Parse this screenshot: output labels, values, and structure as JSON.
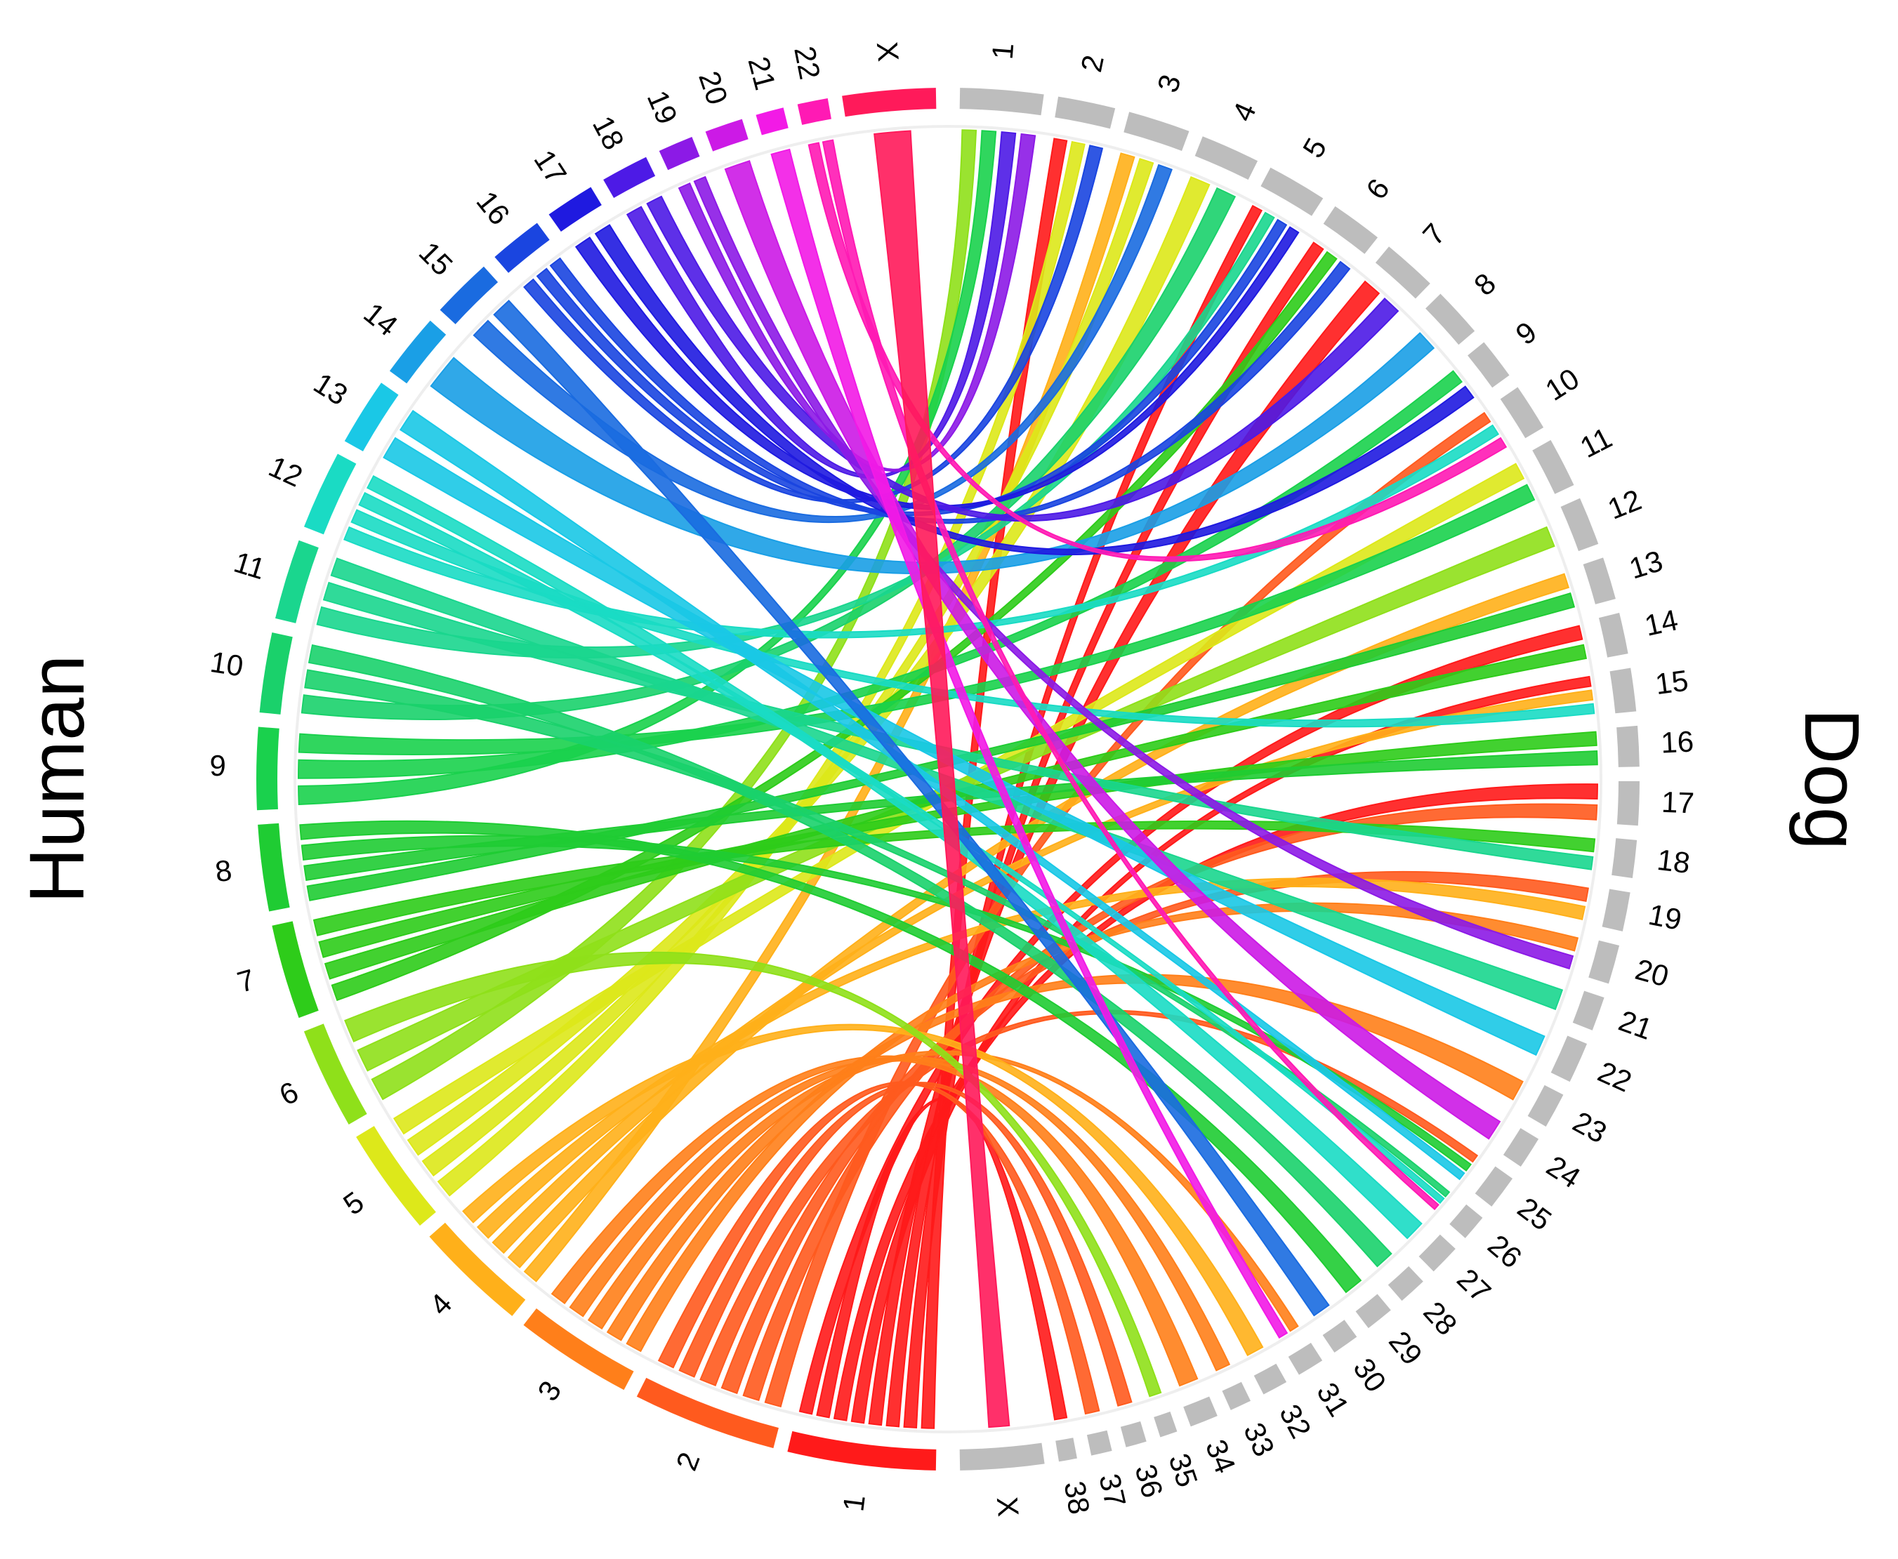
{
  "chart_data": {
    "type": "chord",
    "groups": [
      {
        "name": "Human",
        "chromosomes": [
          "1",
          "2",
          "3",
          "4",
          "5",
          "6",
          "7",
          "8",
          "9",
          "10",
          "11",
          "12",
          "13",
          "14",
          "15",
          "16",
          "17",
          "18",
          "19",
          "20",
          "21",
          "22",
          "X"
        ],
        "lengths": [
          248,
          242,
          198,
          190,
          181,
          171,
          159,
          145,
          138,
          134,
          135,
          133,
          114,
          107,
          102,
          90,
          83,
          80,
          59,
          64,
          47,
          51,
          156
        ],
        "colors": [
          "#ff1a1a",
          "#ff5a1e",
          "#ff7f1a",
          "#ffb01a",
          "#dde81a",
          "#8fe01a",
          "#2ecc1a",
          "#1fcc33",
          "#1ad14d",
          "#1ad16b",
          "#1ad68e",
          "#1adbc4",
          "#1ac8e6",
          "#1a9fe6",
          "#1a6be0",
          "#1a45e0",
          "#1f1ae0",
          "#4d1ae6",
          "#8c1ae6",
          "#cc1ae6",
          "#f21ae6",
          "#ff1ab4",
          "#ff1a5a"
        ]
      },
      {
        "name": "Dog",
        "chromosomes": [
          "1",
          "2",
          "3",
          "4",
          "5",
          "6",
          "7",
          "8",
          "9",
          "10",
          "11",
          "12",
          "13",
          "14",
          "15",
          "16",
          "17",
          "18",
          "19",
          "20",
          "21",
          "22",
          "23",
          "24",
          "25",
          "26",
          "27",
          "28",
          "29",
          "30",
          "31",
          "32",
          "33",
          "34",
          "35",
          "36",
          "37",
          "38",
          "X"
        ],
        "lengths": [
          123,
          85,
          92,
          88,
          89,
          77,
          81,
          74,
          61,
          70,
          74,
          72,
          63,
          61,
          64,
          60,
          65,
          56,
          58,
          58,
          51,
          61,
          53,
          48,
          51,
          39,
          46,
          42,
          42,
          40,
          40,
          38,
          32,
          42,
          26,
          31,
          31,
          27,
          124
        ],
        "color": "#bdbdbd"
      }
    ],
    "links": [
      {
        "from": "1",
        "to": "2"
      },
      {
        "from": "1",
        "to": "5"
      },
      {
        "from": "1",
        "to": "6"
      },
      {
        "from": "1",
        "to": "7"
      },
      {
        "from": "1",
        "to": "15"
      },
      {
        "from": "1",
        "to": "17"
      },
      {
        "from": "1",
        "to": "38"
      },
      {
        "from": "1",
        "to": "14"
      },
      {
        "from": "2",
        "to": "10"
      },
      {
        "from": "2",
        "to": "17"
      },
      {
        "from": "2",
        "to": "19"
      },
      {
        "from": "2",
        "to": "25"
      },
      {
        "from": "2",
        "to": "36"
      },
      {
        "from": "2",
        "to": "37"
      },
      {
        "from": "3",
        "to": "20"
      },
      {
        "from": "3",
        "to": "23"
      },
      {
        "from": "3",
        "to": "31"
      },
      {
        "from": "3",
        "to": "33"
      },
      {
        "from": "3",
        "to": "34"
      },
      {
        "from": "4",
        "to": "3"
      },
      {
        "from": "4",
        "to": "13"
      },
      {
        "from": "4",
        "to": "15"
      },
      {
        "from": "4",
        "to": "19"
      },
      {
        "from": "4",
        "to": "32"
      },
      {
        "from": "5",
        "to": "2"
      },
      {
        "from": "5",
        "to": "3"
      },
      {
        "from": "5",
        "to": "4"
      },
      {
        "from": "5",
        "to": "11"
      },
      {
        "from": "6",
        "to": "1"
      },
      {
        "from": "6",
        "to": "12"
      },
      {
        "from": "6",
        "to": "35"
      },
      {
        "from": "7",
        "to": "6"
      },
      {
        "from": "7",
        "to": "14"
      },
      {
        "from": "7",
        "to": "16"
      },
      {
        "from": "7",
        "to": "18"
      },
      {
        "from": "8",
        "to": "13"
      },
      {
        "from": "8",
        "to": "16"
      },
      {
        "from": "8",
        "to": "25"
      },
      {
        "from": "8",
        "to": "29"
      },
      {
        "from": "9",
        "to": "1"
      },
      {
        "from": "9",
        "to": "9"
      },
      {
        "from": "9",
        "to": "11"
      },
      {
        "from": "10",
        "to": "4"
      },
      {
        "from": "10",
        "to": "26"
      },
      {
        "from": "10",
        "to": "28"
      },
      {
        "from": "11",
        "to": "5"
      },
      {
        "from": "11",
        "to": "18"
      },
      {
        "from": "11",
        "to": "21"
      },
      {
        "from": "12",
        "to": "10"
      },
      {
        "from": "12",
        "to": "15"
      },
      {
        "from": "12",
        "to": "26"
      },
      {
        "from": "12",
        "to": "27"
      },
      {
        "from": "13",
        "to": "22"
      },
      {
        "from": "13",
        "to": "25"
      },
      {
        "from": "14",
        "to": "8"
      },
      {
        "from": "15",
        "to": "3"
      },
      {
        "from": "15",
        "to": "30"
      },
      {
        "from": "16",
        "to": "2"
      },
      {
        "from": "16",
        "to": "5"
      },
      {
        "from": "16",
        "to": "6"
      },
      {
        "from": "17",
        "to": "5"
      },
      {
        "from": "17",
        "to": "9"
      },
      {
        "from": "18",
        "to": "1"
      },
      {
        "from": "18",
        "to": "7"
      },
      {
        "from": "19",
        "to": "1"
      },
      {
        "from": "19",
        "to": "20"
      },
      {
        "from": "20",
        "to": "24"
      },
      {
        "from": "21",
        "to": "31"
      },
      {
        "from": "22",
        "to": "10"
      },
      {
        "from": "22",
        "to": "26"
      },
      {
        "from": "X",
        "to": "X"
      }
    ]
  }
}
